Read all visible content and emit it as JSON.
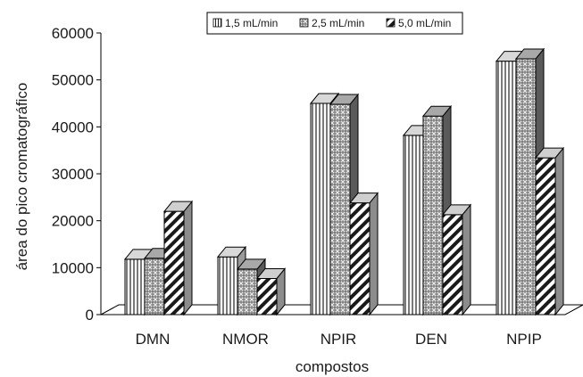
{
  "chart_data": {
    "type": "bar",
    "style": "3d-clustered",
    "xlabel": "compostos",
    "ylabel": "área do pico cromatográfico",
    "ylim": [
      0,
      60000
    ],
    "yticks": [
      0,
      10000,
      20000,
      30000,
      40000,
      50000,
      60000
    ],
    "grid": false,
    "legend_position": "top",
    "categories": [
      "DMN",
      "NMOR",
      "NPIR",
      "DEN",
      "NPIP"
    ],
    "series": [
      {
        "name": "1,5 mL/min",
        "pattern": "vertical-lines",
        "values": [
          11800,
          12300,
          45000,
          38200,
          54000
        ]
      },
      {
        "name": "2,5 mL/min",
        "pattern": "crosshatch",
        "values": [
          12000,
          9700,
          44800,
          42300,
          54500
        ]
      },
      {
        "name": "5,0 mL/min",
        "pattern": "diagonal-stripes",
        "values": [
          22000,
          7700,
          23800,
          21300,
          33400
        ]
      }
    ]
  }
}
